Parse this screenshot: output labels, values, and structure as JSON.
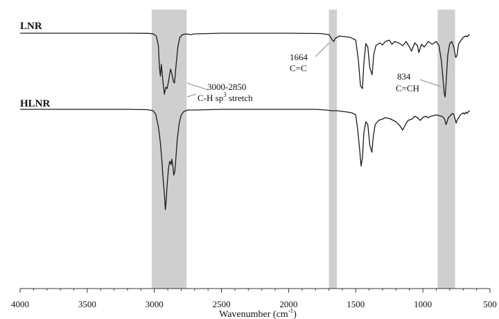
{
  "chart_data": {
    "type": "line",
    "title": "",
    "xlabel": "Wavenumber (cm",
    "xlabel_sup": "-1",
    "xlabel_end": ")",
    "ylabel": "",
    "xlim": [
      4000,
      500
    ],
    "x_reversed": true,
    "x_ticks": [
      4000,
      3500,
      3000,
      2500,
      2000,
      1500,
      1000,
      500
    ],
    "grid": false,
    "highlight_bands": [
      {
        "from": 3020,
        "to": 2760
      },
      {
        "from": 1700,
        "to": 1640
      },
      {
        "from": 890,
        "to": 760
      }
    ],
    "series": [
      {
        "name": "LNR",
        "baseline": 0,
        "points": [
          [
            4000,
            0
          ],
          [
            3200,
            0
          ],
          [
            3050,
            0.2
          ],
          [
            3010,
            0.8
          ],
          [
            2985,
            4
          ],
          [
            2970,
            18
          ],
          [
            2962,
            50
          ],
          [
            2955,
            62
          ],
          [
            2948,
            45
          ],
          [
            2935,
            72
          ],
          [
            2925,
            88
          ],
          [
            2915,
            78
          ],
          [
            2905,
            80
          ],
          [
            2895,
            70
          ],
          [
            2880,
            52
          ],
          [
            2870,
            58
          ],
          [
            2858,
            70
          ],
          [
            2850,
            72
          ],
          [
            2840,
            50
          ],
          [
            2825,
            20
          ],
          [
            2810,
            6
          ],
          [
            2790,
            2
          ],
          [
            2760,
            1
          ],
          [
            2730,
            2
          ],
          [
            2700,
            1
          ],
          [
            2500,
            0
          ],
          [
            2000,
            0
          ],
          [
            1760,
            0.5
          ],
          [
            1700,
            2
          ],
          [
            1680,
            8
          ],
          [
            1664,
            12
          ],
          [
            1650,
            7
          ],
          [
            1620,
            4
          ],
          [
            1580,
            5
          ],
          [
            1540,
            6
          ],
          [
            1500,
            10
          ],
          [
            1480,
            40
          ],
          [
            1465,
            76
          ],
          [
            1450,
            80
          ],
          [
            1440,
            45
          ],
          [
            1425,
            15
          ],
          [
            1410,
            20
          ],
          [
            1395,
            50
          ],
          [
            1378,
            60
          ],
          [
            1365,
            30
          ],
          [
            1350,
            18
          ],
          [
            1320,
            14
          ],
          [
            1300,
            17
          ],
          [
            1280,
            12
          ],
          [
            1250,
            10
          ],
          [
            1230,
            16
          ],
          [
            1210,
            12
          ],
          [
            1180,
            14
          ],
          [
            1150,
            18
          ],
          [
            1125,
            12
          ],
          [
            1100,
            20
          ],
          [
            1085,
            26
          ],
          [
            1060,
            14
          ],
          [
            1040,
            18
          ],
          [
            1030,
            28
          ],
          [
            1010,
            16
          ],
          [
            990,
            20
          ],
          [
            960,
            12
          ],
          [
            930,
            16
          ],
          [
            900,
            12
          ],
          [
            880,
            18
          ],
          [
            862,
            40
          ],
          [
            850,
            66
          ],
          [
            840,
            88
          ],
          [
            834,
            92
          ],
          [
            826,
            70
          ],
          [
            815,
            32
          ],
          [
            800,
            15
          ],
          [
            785,
            12
          ],
          [
            770,
            20
          ],
          [
            755,
            35
          ],
          [
            745,
            32
          ],
          [
            735,
            16
          ],
          [
            715,
            10
          ],
          [
            700,
            6
          ],
          [
            680,
            4
          ],
          [
            670,
            5
          ],
          [
            660,
            3
          ],
          [
            650,
            2
          ]
        ]
      },
      {
        "name": "HLNR",
        "baseline": 0,
        "points": [
          [
            4000,
            0
          ],
          [
            3200,
            0
          ],
          [
            3050,
            0.5
          ],
          [
            3010,
            2
          ],
          [
            2990,
            7
          ],
          [
            2970,
            25
          ],
          [
            2955,
            48
          ],
          [
            2945,
            72
          ],
          [
            2935,
            100
          ],
          [
            2925,
            122
          ],
          [
            2918,
            145
          ],
          [
            2912,
            132
          ],
          [
            2905,
            110
          ],
          [
            2895,
            85
          ],
          [
            2885,
            75
          ],
          [
            2875,
            80
          ],
          [
            2870,
            72
          ],
          [
            2862,
            82
          ],
          [
            2855,
            95
          ],
          [
            2848,
            90
          ],
          [
            2840,
            72
          ],
          [
            2830,
            45
          ],
          [
            2815,
            20
          ],
          [
            2800,
            8
          ],
          [
            2780,
            3
          ],
          [
            2750,
            1
          ],
          [
            2700,
            1
          ],
          [
            2500,
            0
          ],
          [
            2000,
            0
          ],
          [
            1800,
            0
          ],
          [
            1720,
            1
          ],
          [
            1680,
            2
          ],
          [
            1640,
            2
          ],
          [
            1600,
            3
          ],
          [
            1560,
            4
          ],
          [
            1530,
            5
          ],
          [
            1500,
            8
          ],
          [
            1485,
            30
          ],
          [
            1470,
            60
          ],
          [
            1460,
            82
          ],
          [
            1450,
            70
          ],
          [
            1440,
            35
          ],
          [
            1425,
            18
          ],
          [
            1410,
            22
          ],
          [
            1395,
            52
          ],
          [
            1380,
            62
          ],
          [
            1370,
            40
          ],
          [
            1355,
            22
          ],
          [
            1330,
            16
          ],
          [
            1300,
            14
          ],
          [
            1280,
            12
          ],
          [
            1240,
            14
          ],
          [
            1200,
            18
          ],
          [
            1170,
            24
          ],
          [
            1150,
            30
          ],
          [
            1130,
            22
          ],
          [
            1110,
            16
          ],
          [
            1080,
            14
          ],
          [
            1060,
            10
          ],
          [
            1040,
            12
          ],
          [
            1020,
            16
          ],
          [
            1000,
            12
          ],
          [
            980,
            10
          ],
          [
            960,
            12
          ],
          [
            940,
            10
          ],
          [
            900,
            8
          ],
          [
            880,
            9
          ],
          [
            860,
            10
          ],
          [
            845,
            12
          ],
          [
            835,
            16
          ],
          [
            828,
            22
          ],
          [
            820,
            18
          ],
          [
            810,
            12
          ],
          [
            800,
            10
          ],
          [
            790,
            8
          ],
          [
            780,
            6
          ],
          [
            770,
            7
          ],
          [
            760,
            14
          ],
          [
            752,
            20
          ],
          [
            745,
            16
          ],
          [
            735,
            12
          ],
          [
            720,
            8
          ],
          [
            700,
            5
          ],
          [
            690,
            7
          ],
          [
            680,
            4
          ],
          [
            670,
            6
          ],
          [
            660,
            3
          ],
          [
            650,
            2
          ]
        ]
      }
    ],
    "annotations": [
      {
        "id": "ch-stretch",
        "line1": "3000-2850",
        "line2_main": "C-H sp",
        "line2_sup": "3",
        "line2_end": " stretch",
        "x": 2790
      },
      {
        "id": "cc",
        "line1": "1664",
        "line2": "C=C",
        "x": 1664
      },
      {
        "id": "cch",
        "line1": "834",
        "line2": "C=CH",
        "x": 834
      }
    ]
  }
}
